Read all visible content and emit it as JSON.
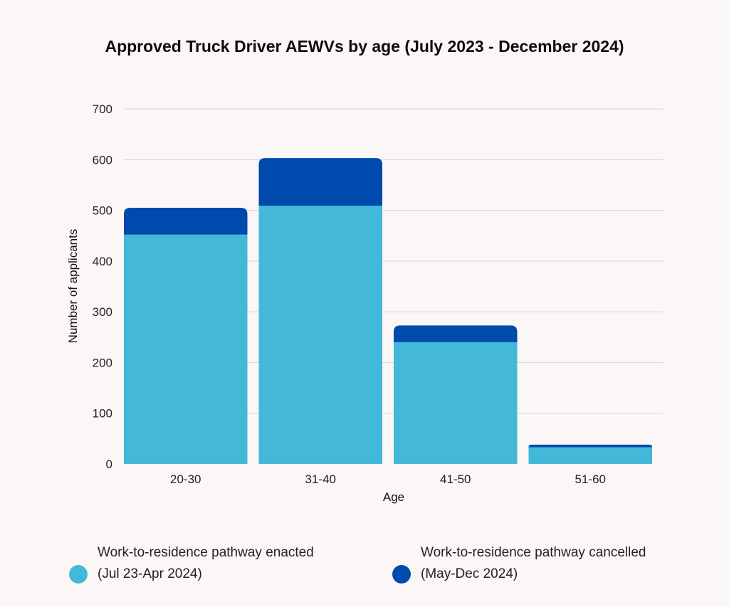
{
  "chart_data": {
    "type": "bar",
    "stacked": true,
    "title": "Approved Truck Driver AEWVs by age (July 2023 - December 2024)",
    "xlabel": "Age",
    "ylabel": "Number of applicants",
    "categories": [
      "20-30",
      "31-40",
      "41-50",
      "51-60"
    ],
    "ylim": [
      0,
      700
    ],
    "yticks": [
      0,
      100,
      200,
      300,
      400,
      500,
      600,
      700
    ],
    "grid": true,
    "legend_position": "bottom",
    "series": [
      {
        "name": "Work-to-residence pathway enacted (Jul 23-Apr 2024)",
        "name_lines": [
          "Work-to-residence pathway enacted",
          "(Jul 23-Apr 2024)"
        ],
        "color": "#44b8d8",
        "values": [
          452,
          509,
          240,
          33
        ]
      },
      {
        "name": "Work-to-residence pathway cancelled (May-Dec 2024)",
        "name_lines": [
          "Work-to-residence pathway cancelled",
          "(May-Dec 2024)"
        ],
        "color": "#004aad",
        "values": [
          53,
          94,
          33,
          5
        ]
      }
    ]
  }
}
